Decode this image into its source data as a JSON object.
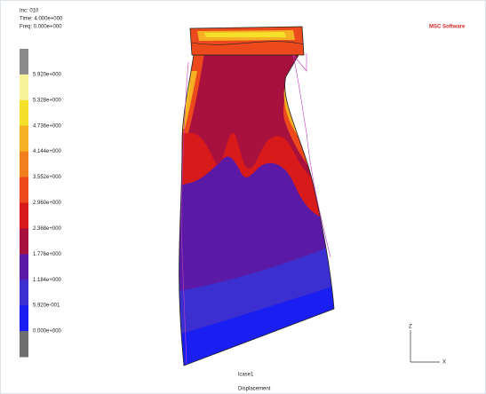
{
  "header": {
    "inc": "Inc:  010",
    "time": "Time:  4.000e+000",
    "freq": "Freq:  0.000e+000"
  },
  "logo": "MSC Software",
  "legend": {
    "labels": [
      "5.920e+000",
      "5.328e+000",
      "4.736e+000",
      "4.144e+000",
      "3.552e+000",
      "2.960e+000",
      "2.368e+000",
      "1.776e+000",
      "1.184e+000",
      "5.920e-001",
      "0.000e+000"
    ],
    "colors": [
      "#8c8c8c",
      "#f7f39a",
      "#f5e02a",
      "#f5b123",
      "#f27f1e",
      "#ec4a1c",
      "#d81a1a",
      "#a8113e",
      "#5b1aa6",
      "#3c2fd0",
      "#1a1ef0",
      "#6e6e6e"
    ]
  },
  "footer": {
    "case": "lcase1",
    "quantity": "Displacement"
  },
  "triad": {
    "z": "Z",
    "x": "X"
  }
}
